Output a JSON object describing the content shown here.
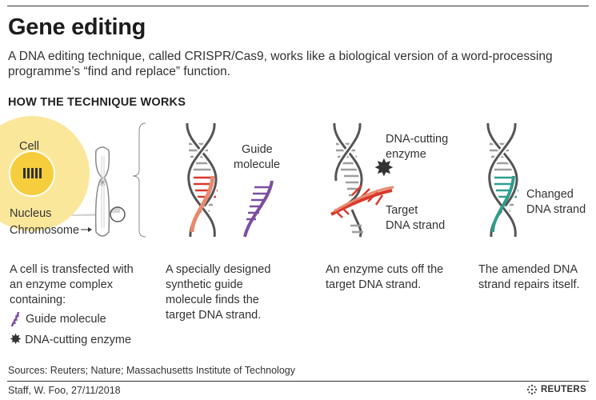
{
  "header": {
    "title": "Gene editing",
    "subtitle": "A DNA editing technique, called CRISPR/Cas9, works like a biological version of a word-processing programme’s “find and replace” function.",
    "section": "HOW THE TECHNIQUE WORKS"
  },
  "diagram": {
    "labels": {
      "cell": "Cell",
      "nucleus": "Nucleus",
      "chromosome": "Chromosome",
      "guide_line1": "Guide",
      "guide_line2": "molecule",
      "enzyme_line1": "DNA-cutting",
      "enzyme_line2": "enzyme",
      "target_line1": "Target",
      "target_line2": "DNA strand",
      "changed_line1": "Changed",
      "changed_line2": "DNA strand"
    },
    "colors": {
      "dna_gray": "#9e9e9e",
      "target_red": "#d9392b",
      "target_salmon": "#e88a6e",
      "guide_purple": "#7b4fa0",
      "changed_teal": "#2f9e8e",
      "cell_yellow": "#fbe79a",
      "nucleus_yellow": "#f6cd3c",
      "enzyme_dark": "#333333"
    }
  },
  "steps": [
    {
      "line1": "A cell is transfected with",
      "line2": "an enzyme complex",
      "line3": "containing:",
      "legend_guide": "Guide molecule",
      "legend_enzyme": "DNA-cutting enzyme"
    },
    {
      "line1": "A specially designed",
      "line2": "synthetic guide",
      "line3": "molecule finds the",
      "line4": "target DNA strand."
    },
    {
      "line1": "An enzyme cuts off the",
      "line2": "target DNA strand."
    },
    {
      "line1": "The amended DNA",
      "line2": "strand repairs itself."
    }
  ],
  "footer": {
    "sources": "Sources: Reuters; Nature; Massachusetts Institute of Technology",
    "credit": "Staff, W. Foo,  27/11/2018",
    "brand": "REUTERS"
  }
}
